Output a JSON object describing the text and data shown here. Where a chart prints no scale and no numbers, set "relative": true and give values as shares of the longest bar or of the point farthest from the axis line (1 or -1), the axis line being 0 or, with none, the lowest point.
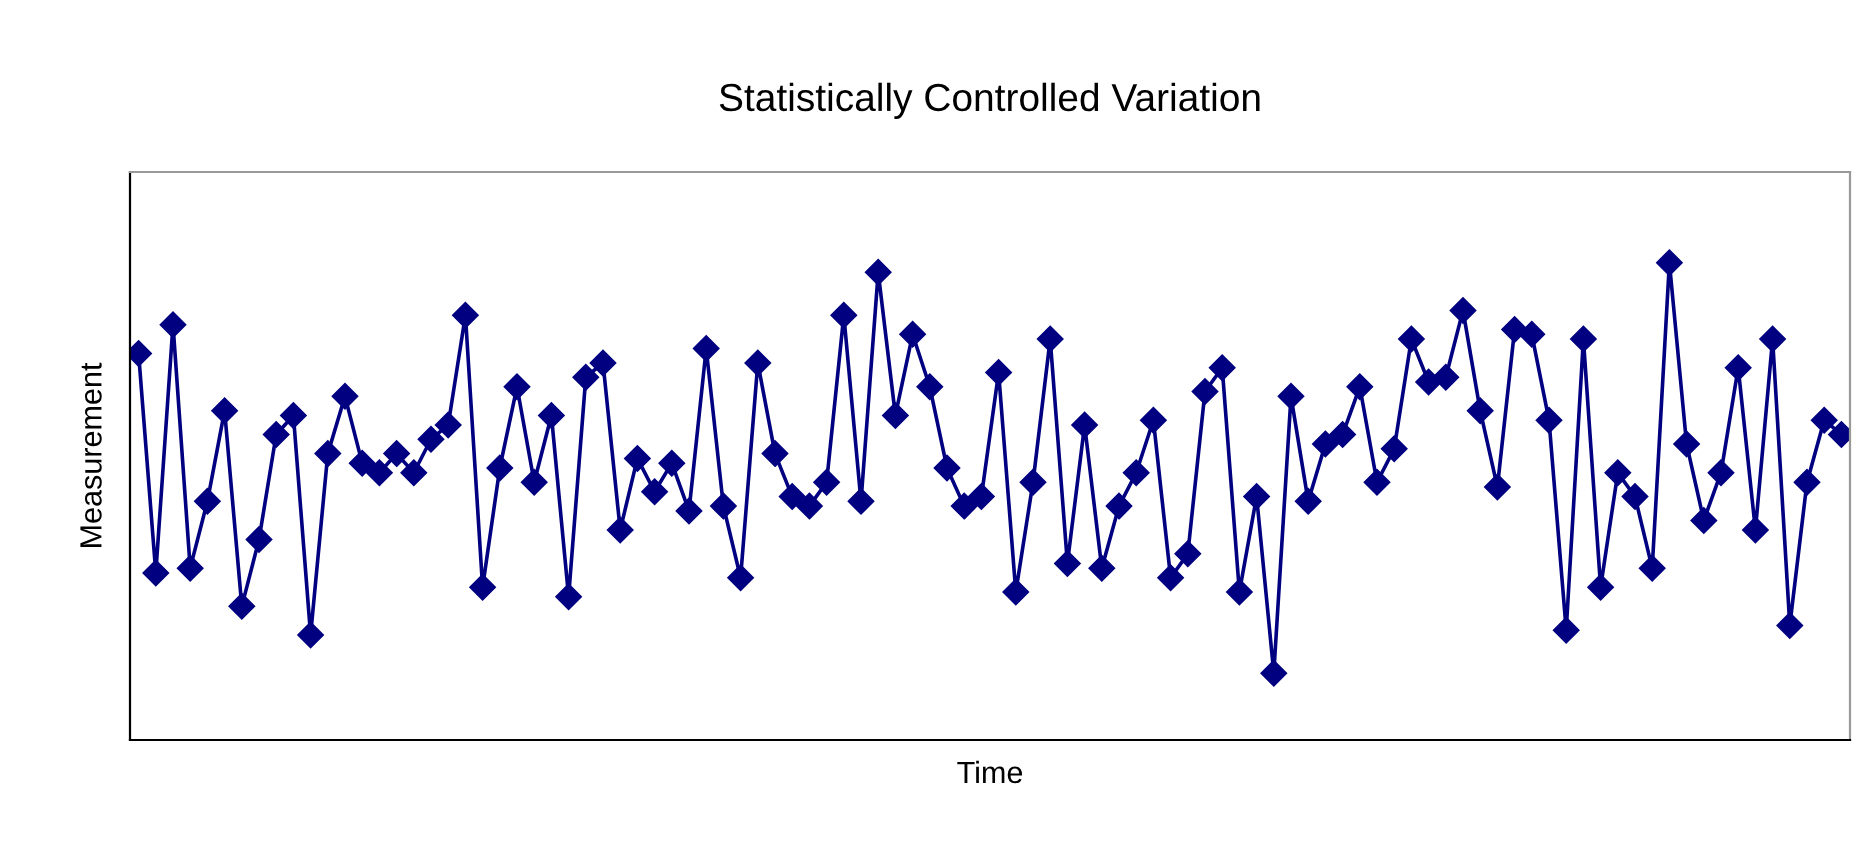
{
  "chart_data": {
    "type": "line",
    "title": "Statistically Controlled Variation",
    "xlabel": "Time",
    "ylabel": "Measurement",
    "relative": true,
    "marker": "diamond",
    "line_style": "solid",
    "grid": false,
    "legend": false,
    "categories": [
      null,
      null,
      null,
      null,
      null,
      null,
      null,
      null,
      null,
      null,
      null,
      null,
      null,
      null,
      null,
      null,
      null,
      null,
      null,
      null,
      null,
      null,
      null,
      null,
      null,
      null,
      null,
      null,
      null,
      null,
      null,
      null,
      null,
      null,
      null,
      null,
      null,
      null,
      null,
      null,
      null,
      null,
      null,
      null,
      null,
      null,
      null,
      null,
      null,
      null,
      null,
      null,
      null,
      null,
      null,
      null,
      null,
      null,
      null,
      null,
      null,
      null,
      null,
      null,
      null,
      null,
      null,
      null,
      null,
      null,
      null,
      null,
      null,
      null,
      null,
      null,
      null,
      null,
      null,
      null,
      null,
      null,
      null,
      null,
      null,
      null,
      null,
      null,
      null,
      null,
      null,
      null,
      null,
      null,
      null,
      null,
      null,
      null,
      null,
      null
    ],
    "series": [
      {
        "color": "#000080",
        "values": [
          0.81,
          0.35,
          0.87,
          0.36,
          0.5,
          0.69,
          0.28,
          0.42,
          0.64,
          0.68,
          0.22,
          0.6,
          0.72,
          0.58,
          0.56,
          0.6,
          0.56,
          0.63,
          0.66,
          0.89,
          0.32,
          0.57,
          0.74,
          0.54,
          0.68,
          0.3,
          0.76,
          0.79,
          0.44,
          0.59,
          0.52,
          0.58,
          0.48,
          0.82,
          0.49,
          0.34,
          0.79,
          0.6,
          0.51,
          0.49,
          0.54,
          0.89,
          0.5,
          0.98,
          0.68,
          0.85,
          0.74,
          0.57,
          0.49,
          0.51,
          0.77,
          0.31,
          0.54,
          0.84,
          0.37,
          0.66,
          0.36,
          0.49,
          0.56,
          0.67,
          0.34,
          0.39,
          0.73,
          0.78,
          0.31,
          0.51,
          0.14,
          0.72,
          0.5,
          0.62,
          0.64,
          0.74,
          0.54,
          0.61,
          0.84,
          0.75,
          0.76,
          0.9,
          0.69,
          0.53,
          0.86,
          0.85,
          0.67,
          0.23,
          0.84,
          0.32,
          0.56,
          0.51,
          0.36,
          1,
          0.62,
          0.46,
          0.56,
          0.78,
          0.44,
          0.84,
          0.24,
          0.54,
          0.67,
          0.64
        ]
      }
    ]
  }
}
